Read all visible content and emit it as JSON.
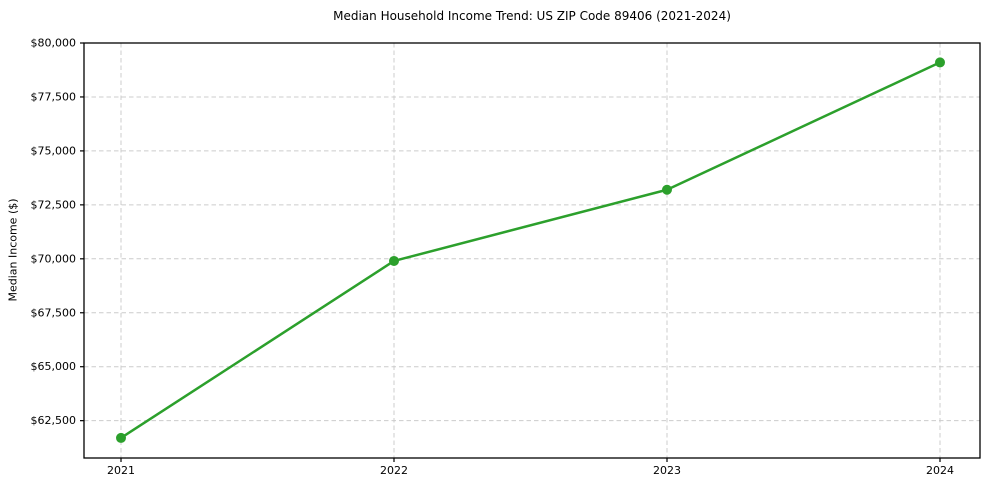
{
  "chart_data": {
    "type": "line",
    "title": "Median Household Income Trend: US ZIP Code 89406 (2021-2024)",
    "xlabel": "",
    "ylabel": "Median Income ($)",
    "x": [
      2021,
      2022,
      2023,
      2024
    ],
    "xtick_labels": [
      "2021",
      "2022",
      "2023",
      "2024"
    ],
    "series": [
      {
        "name": "Median Household Income",
        "values": [
          61700,
          69900,
          73200,
          79100
        ],
        "color": "#2ca02c",
        "marker": "circle"
      }
    ],
    "ylim": [
      60770,
      80000
    ],
    "yticks": [
      62500,
      65000,
      67500,
      70000,
      72500,
      75000,
      77500,
      80000
    ],
    "ytick_labels": [
      "$62,500",
      "$65,000",
      "$67,500",
      "$70,000",
      "$72,500",
      "$75,000",
      "$77,500",
      "$80,000"
    ],
    "grid": true,
    "grid_line_style": "dashed",
    "grid_color": "#cccccc",
    "spine_color": "#000000",
    "background_color": "#ffffff",
    "legend": "none"
  }
}
